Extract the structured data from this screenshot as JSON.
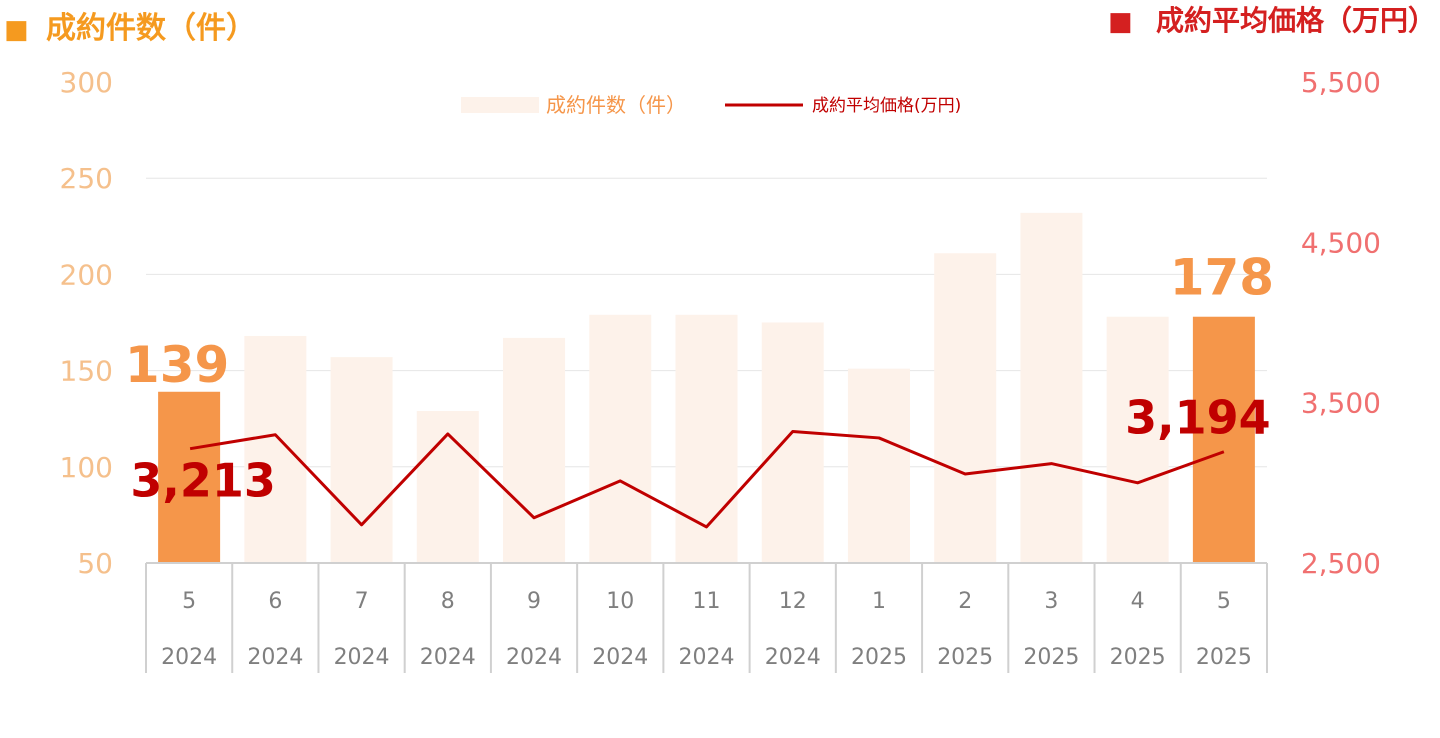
{
  "left_header": {
    "marker": "■",
    "text": "成約件数（件）"
  },
  "right_header": {
    "marker": "■",
    "text": "成約平均価格（万円）"
  },
  "colors": {
    "left_axis": "#f5c08c",
    "right_axis": "#f07070",
    "bar": "#fdf2ea",
    "bar_highlight": "#f5964a",
    "line": "#c00000",
    "left_header": "#f59a1f",
    "right_header": "#d42020",
    "gridline": "#e6e6e6",
    "table_text": "#7f7f7f"
  },
  "chart_data": {
    "type": "bar+line",
    "categories": [
      {
        "month": "5",
        "year": "2024"
      },
      {
        "month": "6",
        "year": "2024"
      },
      {
        "month": "7",
        "year": "2024"
      },
      {
        "month": "8",
        "year": "2024"
      },
      {
        "month": "9",
        "year": "2024"
      },
      {
        "month": "10",
        "year": "2024"
      },
      {
        "month": "11",
        "year": "2024"
      },
      {
        "month": "12",
        "year": "2024"
      },
      {
        "month": "1",
        "year": "2025"
      },
      {
        "month": "2",
        "year": "2025"
      },
      {
        "month": "3",
        "year": "2025"
      },
      {
        "month": "4",
        "year": "2025"
      },
      {
        "month": "5",
        "year": "2025"
      }
    ],
    "series": [
      {
        "name": "成約件数（件）",
        "type": "bar",
        "axis": "left",
        "values": [
          139,
          168,
          157,
          129,
          167,
          179,
          179,
          175,
          151,
          211,
          232,
          178,
          178
        ],
        "highlight_indices": [
          0,
          12
        ]
      },
      {
        "name": "成約平均価格(万円)",
        "type": "line",
        "axis": "right",
        "values": [
          3213,
          3300,
          2738,
          3305,
          2782,
          3012,
          2725,
          3320,
          3280,
          3055,
          3120,
          3000,
          3194
        ]
      }
    ],
    "left_axis": {
      "ticks": [
        "300",
        "250",
        "200",
        "150",
        "100",
        "50"
      ],
      "ylim": [
        50,
        300
      ]
    },
    "right_axis": {
      "ticks": [
        "5,500",
        "4,500",
        "3,500",
        "2,500"
      ],
      "ylim": [
        2500,
        5500
      ]
    },
    "annotations": {
      "bar_first": "139",
      "bar_last": "178",
      "line_first": "3,213",
      "line_last": "3,194"
    },
    "legend": [
      {
        "label": "成約件数（件）",
        "kind": "bar"
      },
      {
        "label": "成約平均価格(万円)",
        "kind": "line"
      }
    ],
    "legend_position": "top-center",
    "grid": true
  }
}
